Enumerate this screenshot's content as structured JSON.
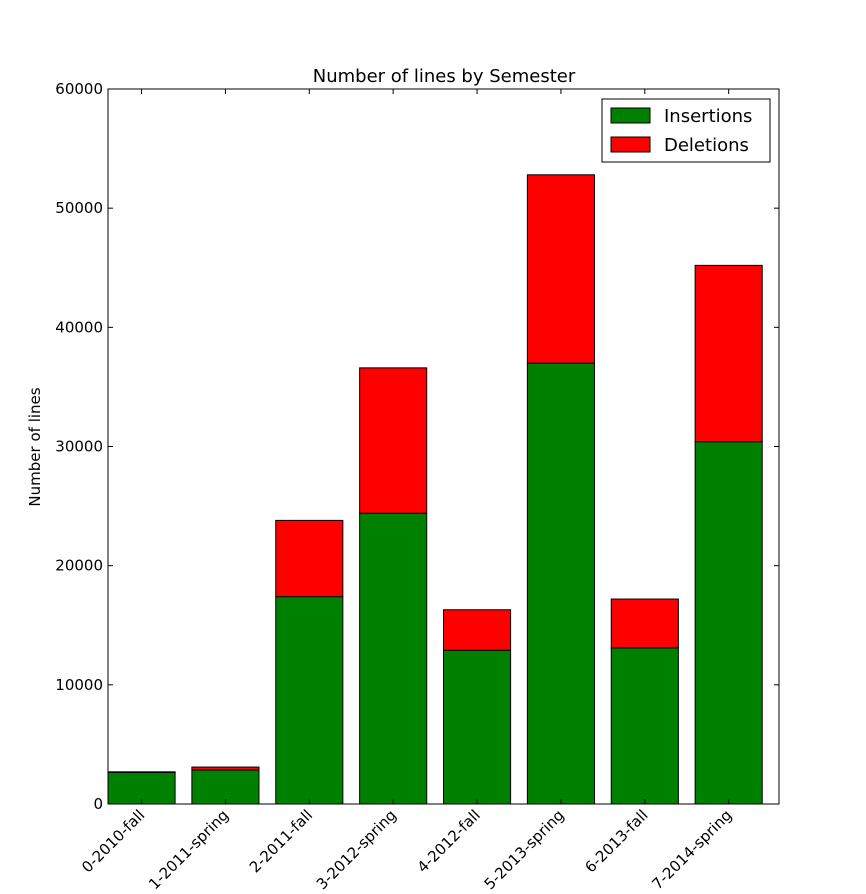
{
  "chart_data": {
    "type": "bar",
    "stacked": true,
    "title": "Number of lines by Semester",
    "xlabel": "",
    "ylabel": "Number of lines",
    "categories": [
      "0-2010-fall",
      "1-2011-spring",
      "2-2011-fall",
      "3-2012-spring",
      "4-2012-fall",
      "5-2013-spring",
      "6-2013-fall",
      "7-2014-spring"
    ],
    "series": [
      {
        "name": "Insertions",
        "color": "#008000",
        "values": [
          2650,
          2850,
          17400,
          24400,
          12900,
          37000,
          13100,
          30400
        ]
      },
      {
        "name": "Deletions",
        "color": "#ff0000",
        "values": [
          50,
          250,
          6400,
          12200,
          3400,
          15800,
          4100,
          14800
        ]
      }
    ],
    "ylim": [
      0,
      60000
    ],
    "yticks": [
      0,
      10000,
      20000,
      30000,
      40000,
      50000,
      60000
    ],
    "grid": false,
    "legend_position": "top-right"
  }
}
